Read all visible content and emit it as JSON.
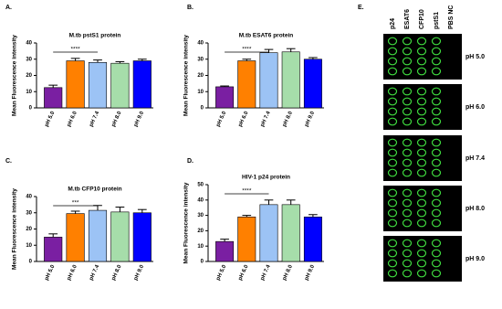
{
  "chart_data": [
    {
      "type": "bar",
      "panel_label": "A.",
      "title": "M.tb pstS1 protein",
      "ylabel": "Mean Fluorescence intensity",
      "categories": [
        "pH 5.0",
        "pH 6.0",
        "pH 7.4",
        "pH 8.0",
        "pH 9.0"
      ],
      "values": [
        12.5,
        29,
        28,
        27.5,
        29
      ],
      "errors": [
        1.5,
        1.5,
        1.5,
        1,
        1
      ],
      "colors": [
        "#7a1fa2",
        "#ff8000",
        "#9cc3f5",
        "#a6ddaa",
        "#0000ff"
      ],
      "ylim": [
        0,
        40
      ],
      "yticks": [
        0,
        10,
        20,
        30,
        40
      ],
      "annotation": {
        "text": "****",
        "between": [
          "pH 5.0",
          "pH 7.4"
        ]
      }
    },
    {
      "type": "bar",
      "panel_label": "B.",
      "title": "M.tb ESAT6 protein",
      "ylabel": "Mean Fluorescence intensity",
      "categories": [
        "pH 5.0",
        "pH 6.0",
        "pH 7.4",
        "pH 8.0",
        "pH 9.0"
      ],
      "values": [
        13,
        29,
        34,
        34.5,
        30
      ],
      "errors": [
        0.5,
        1,
        2,
        2,
        1
      ],
      "colors": [
        "#7a1fa2",
        "#ff8000",
        "#9cc3f5",
        "#a6ddaa",
        "#0000ff"
      ],
      "ylim": [
        0,
        40
      ],
      "yticks": [
        0,
        10,
        20,
        30,
        40
      ],
      "annotation": {
        "text": "****",
        "between": [
          "pH 5.0",
          "pH 7.4"
        ]
      }
    },
    {
      "type": "bar",
      "panel_label": "C.",
      "title": "M.tb CFP10 protein",
      "ylabel": "Mean Fluorescence intensity",
      "categories": [
        "pH 5.0",
        "pH 6.0",
        "pH 7.4",
        "pH 8.0",
        "pH 9.0"
      ],
      "values": [
        15,
        29.5,
        31.5,
        30.5,
        30
      ],
      "errors": [
        2,
        1.5,
        3,
        3,
        2
      ],
      "colors": [
        "#7a1fa2",
        "#ff8000",
        "#9cc3f5",
        "#a6ddaa",
        "#0000ff"
      ],
      "ylim": [
        0,
        40
      ],
      "yticks": [
        0,
        10,
        20,
        30,
        40
      ],
      "annotation": {
        "text": "***",
        "between": [
          "pH 5.0",
          "pH 7.4"
        ]
      }
    },
    {
      "type": "bar",
      "panel_label": "D.",
      "title": "HIV-1 p24 protein",
      "ylabel": "Mean Fluorescence intensity",
      "categories": [
        "pH 5.0",
        "pH 6.0",
        "pH 7.4",
        "pH 8.0",
        "pH 9.0"
      ],
      "values": [
        13,
        29,
        37,
        37,
        29
      ],
      "errors": [
        1.5,
        1,
        3,
        3,
        1.5
      ],
      "colors": [
        "#7a1fa2",
        "#ff8000",
        "#9cc3f5",
        "#a6ddaa",
        "#0000ff"
      ],
      "ylim": [
        0,
        50
      ],
      "yticks": [
        0,
        10,
        20,
        30,
        40,
        50
      ],
      "annotation": {
        "text": "****",
        "between": [
          "pH 5.0",
          "pH 7.4"
        ]
      }
    }
  ],
  "panel_e": {
    "label": "E.",
    "columns": [
      "p24",
      "ESAT6",
      "CFP10",
      "pstS1",
      "PBS NC"
    ],
    "rows": [
      "pH 5.0",
      "pH 6.0",
      "pH 7.4",
      "pH 8.0",
      "pH 9.0"
    ]
  }
}
